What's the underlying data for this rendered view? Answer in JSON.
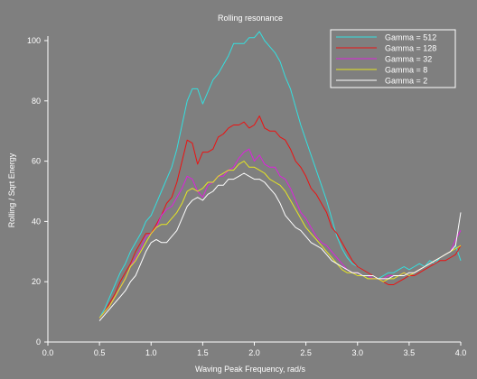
{
  "chart_data": {
    "type": "line",
    "title": "Rolling resonance",
    "xlabel": "Waving Peak Frequency, rad/s",
    "ylabel": "Rolling / Sqrt Energy",
    "xlim": [
      0,
      4
    ],
    "ylim": [
      0,
      100
    ],
    "xticks": [
      "0.0",
      "0.5",
      "1.0",
      "1.5",
      "2.0",
      "2.5",
      "3.0",
      "3.5",
      "4.0"
    ],
    "yticks": [
      "0",
      "20",
      "40",
      "60",
      "80",
      "100"
    ],
    "grid": false,
    "legend_position": "top-right",
    "background_color": "#7f7f7f",
    "axis_color": "#ffffff",
    "x": [
      0.5,
      0.55,
      0.6,
      0.65,
      0.7,
      0.75,
      0.8,
      0.85,
      0.9,
      0.95,
      1.0,
      1.05,
      1.1,
      1.15,
      1.2,
      1.25,
      1.3,
      1.35,
      1.4,
      1.45,
      1.5,
      1.55,
      1.6,
      1.65,
      1.7,
      1.75,
      1.8,
      1.85,
      1.9,
      1.95,
      2.0,
      2.05,
      2.1,
      2.15,
      2.2,
      2.25,
      2.3,
      2.35,
      2.4,
      2.45,
      2.5,
      2.55,
      2.6,
      2.65,
      2.7,
      2.75,
      2.8,
      2.85,
      2.9,
      2.95,
      3.0,
      3.05,
      3.1,
      3.15,
      3.2,
      3.25,
      3.3,
      3.35,
      3.4,
      3.45,
      3.5,
      3.55,
      3.6,
      3.65,
      3.7,
      3.75,
      3.8,
      3.85,
      3.9,
      3.95,
      4.0
    ],
    "series": [
      {
        "name": "Gamma = 512",
        "color": "#33e0e0",
        "values": [
          8,
          11,
          15,
          19,
          23,
          26,
          30,
          33,
          36,
          40,
          42,
          46,
          50,
          54,
          58,
          64,
          72,
          80,
          84,
          84,
          79,
          83,
          87,
          89,
          92,
          95,
          99,
          99,
          99,
          101,
          101,
          103,
          100,
          98,
          96,
          93,
          88,
          84,
          78,
          72,
          67,
          62,
          57,
          52,
          47,
          41,
          35,
          31,
          28,
          26,
          25,
          24,
          23,
          22,
          21,
          22,
          23,
          23,
          24,
          25,
          24,
          25,
          26,
          25,
          27,
          26,
          28,
          29,
          30,
          32,
          27
        ]
      },
      {
        "name": "Gamma = 128",
        "color": "#ee1111",
        "values": [
          8,
          10,
          13,
          16,
          20,
          23,
          26,
          30,
          33,
          36,
          36,
          39,
          42,
          46,
          48,
          53,
          60,
          67,
          66,
          59,
          63,
          63,
          64,
          68,
          69,
          71,
          72,
          72,
          73,
          71,
          72,
          75,
          71,
          70,
          70,
          68,
          67,
          64,
          60,
          58,
          55,
          51,
          49,
          46,
          43,
          38,
          36,
          33,
          30,
          27,
          25,
          24,
          23,
          22,
          21,
          20,
          19,
          19,
          20,
          21,
          22,
          22,
          23,
          24,
          25,
          26,
          27,
          27,
          28,
          29,
          32
        ]
      },
      {
        "name": "Gamma = 32",
        "color": "#dd22dd",
        "values": [
          8,
          10,
          12,
          15,
          18,
          21,
          25,
          28,
          31,
          35,
          36,
          38,
          42,
          44,
          45,
          48,
          51,
          55,
          54,
          50,
          48,
          52,
          53,
          55,
          55,
          57,
          58,
          61,
          63,
          64,
          60,
          62,
          59,
          58,
          58,
          55,
          54,
          51,
          47,
          43,
          41,
          38,
          35,
          33,
          32,
          30,
          28,
          26,
          24,
          23,
          23,
          22,
          22,
          21,
          21,
          21,
          22,
          22,
          22,
          23,
          22,
          23,
          24,
          25,
          26,
          27,
          28,
          29,
          30,
          34,
          37
        ]
      },
      {
        "name": "Gamma = 8",
        "color": "#e6e622",
        "values": [
          8,
          10,
          12,
          15,
          18,
          21,
          25,
          27,
          30,
          33,
          36,
          38,
          39,
          39,
          41,
          43,
          46,
          50,
          51,
          50,
          51,
          53,
          53,
          55,
          56,
          57,
          57,
          59,
          60,
          58,
          58,
          57,
          56,
          54,
          53,
          52,
          50,
          47,
          44,
          41,
          38,
          36,
          34,
          32,
          30,
          28,
          26,
          24,
          23,
          23,
          22,
          22,
          21,
          21,
          21,
          20,
          21,
          21,
          22,
          23,
          22,
          23,
          24,
          25,
          26,
          27,
          28,
          29,
          30,
          31,
          32
        ]
      },
      {
        "name": "Gamma = 2",
        "color": "#ffffff",
        "values": [
          7,
          9,
          11,
          13,
          15,
          17,
          20,
          22,
          26,
          30,
          33,
          34,
          33,
          33,
          35,
          37,
          41,
          45,
          47,
          48,
          47,
          49,
          50,
          52,
          52,
          54,
          54,
          55,
          56,
          55,
          54,
          54,
          53,
          51,
          49,
          46,
          42,
          40,
          38,
          37,
          35,
          33,
          32,
          31,
          29,
          27,
          26,
          25,
          24,
          23,
          23,
          22,
          22,
          22,
          21,
          21,
          21,
          22,
          22,
          22,
          23,
          23,
          24,
          25,
          26,
          27,
          28,
          29,
          30,
          32,
          43
        ]
      }
    ]
  }
}
